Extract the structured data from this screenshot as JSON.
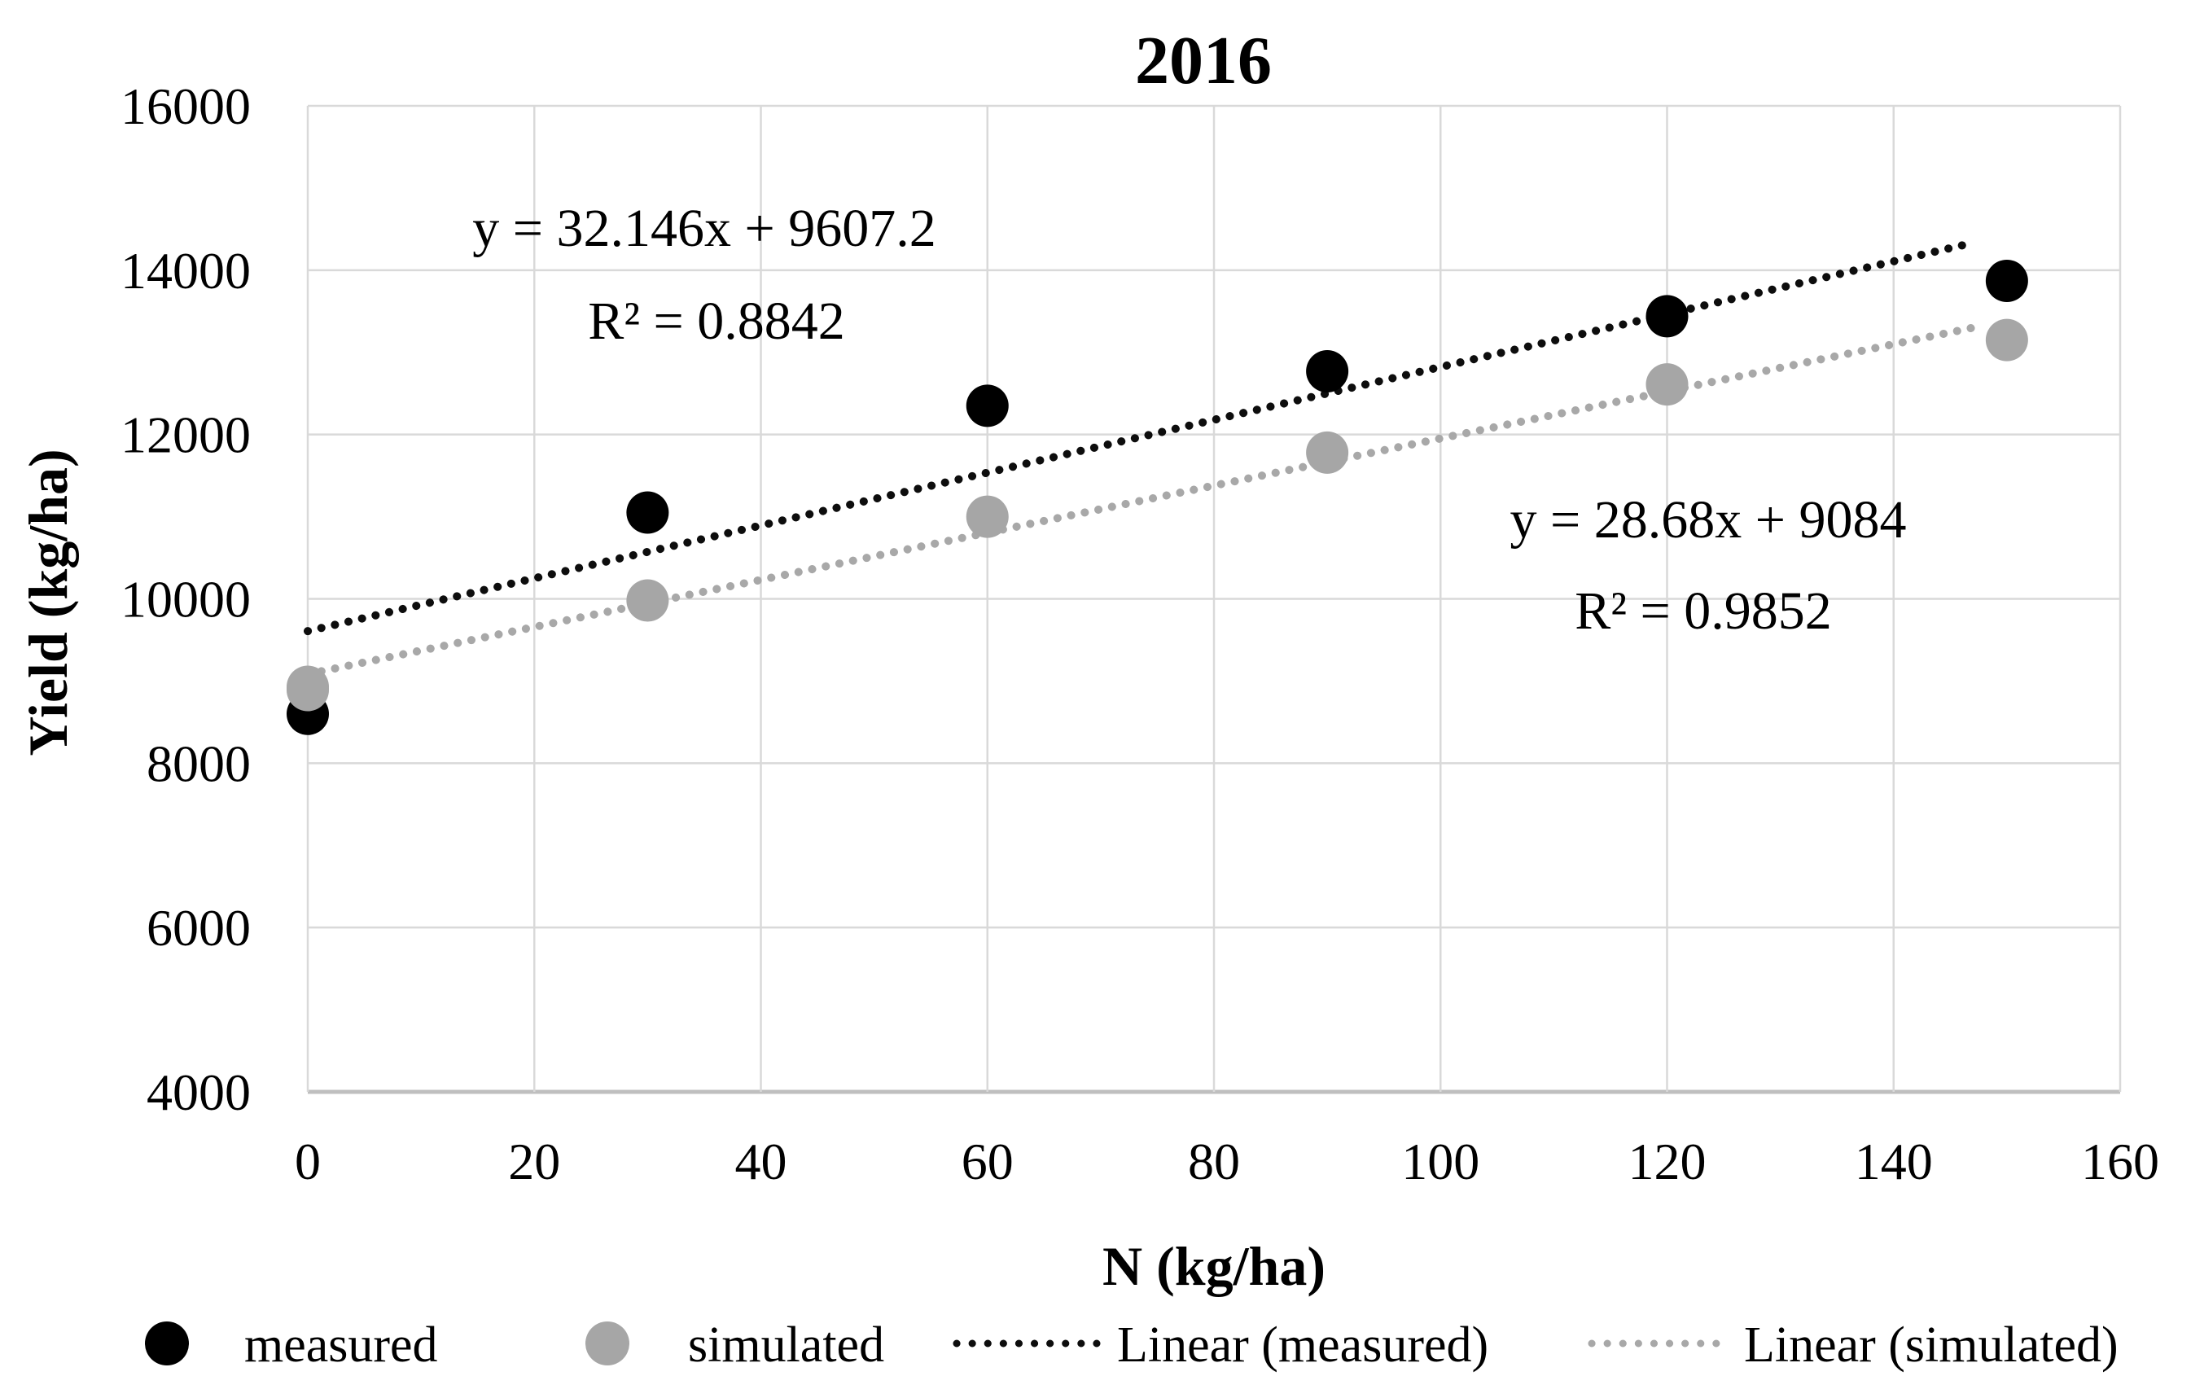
{
  "chart_data": {
    "type": "scatter",
    "title": "2016",
    "xlabel": "N (kg/ha)",
    "ylabel": "Yield (kg/ha)",
    "xlim": [
      0,
      160
    ],
    "ylim": [
      4000,
      16000
    ],
    "x_ticks": [
      0,
      20,
      40,
      60,
      80,
      100,
      120,
      140,
      160
    ],
    "y_ticks": [
      4000,
      6000,
      8000,
      10000,
      12000,
      14000,
      16000
    ],
    "grid": true,
    "series": [
      {
        "name": "measured",
        "marker": "circle",
        "color": "#000000",
        "x": [
          0,
          30,
          60,
          90,
          120,
          150
        ],
        "y": [
          8600,
          11050,
          12350,
          12770,
          13440,
          13870
        ]
      },
      {
        "name": "simulated",
        "marker": "circle",
        "color": "#a6a6a6",
        "x": [
          0,
          30,
          60,
          90,
          120,
          150
        ],
        "y": [
          8890,
          9980,
          11000,
          11780,
          12610,
          13150
        ]
      }
    ],
    "trendlines": [
      {
        "name": "Linear (measured)",
        "style": "dotted",
        "color": "#0d0d0d",
        "slope": 32.146,
        "intercept": 9607.2,
        "x_start": 0,
        "x_end": 147,
        "equation": "y = 32.146x + 9607.2",
        "r2": "R² = 0.8842"
      },
      {
        "name": "Linear (simulated)",
        "style": "dotted",
        "color": "#a8a8a8",
        "slope": 28.68,
        "intercept": 9084,
        "x_start": 0,
        "x_end": 147,
        "equation": "y = 28.68x + 9084",
        "r2": "R² = 0.9852"
      }
    ],
    "legend": {
      "position": "bottom",
      "items": [
        {
          "label": "measured",
          "swatch": "dot",
          "color": "#000000"
        },
        {
          "label": "simulated",
          "swatch": "dot",
          "color": "#a6a6a6"
        },
        {
          "label": "Linear (measured)",
          "swatch": "dotted-line",
          "color": "#0d0d0d"
        },
        {
          "label": "Linear (simulated)",
          "swatch": "dotted-line",
          "color": "#a8a8a8"
        }
      ]
    },
    "colors": {
      "gridline": "#d9d9d9",
      "axis_line": "#bfbfbf",
      "background": "#ffffff"
    }
  }
}
